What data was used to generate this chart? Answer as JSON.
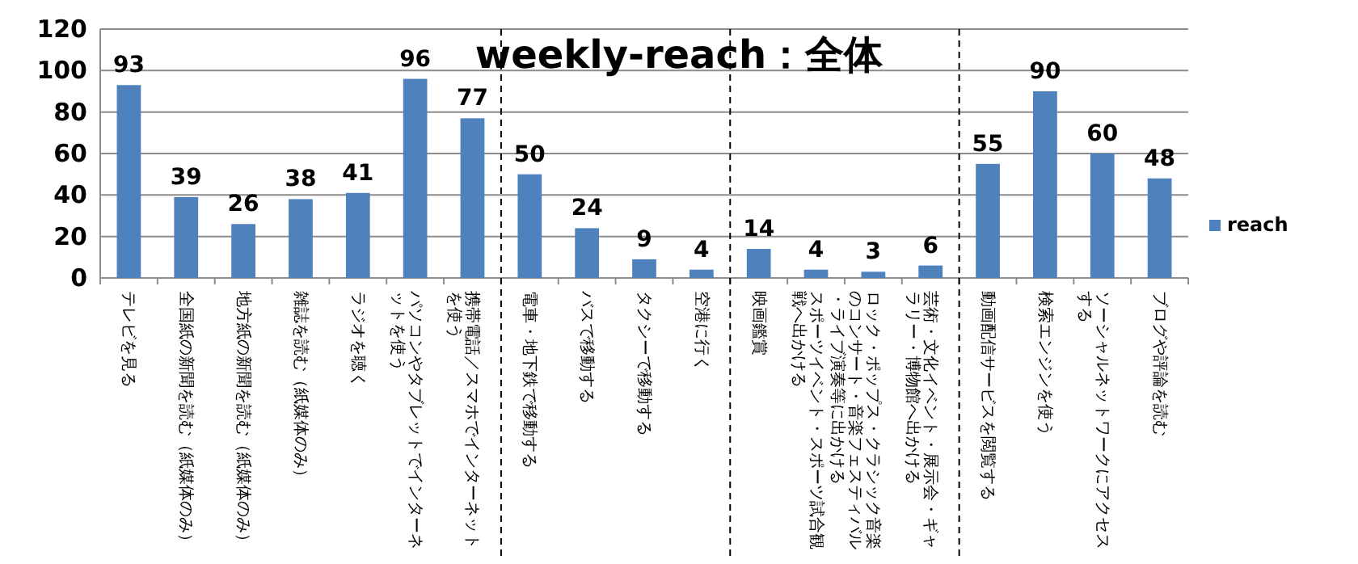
{
  "chart_data": {
    "type": "bar",
    "title": "weekly-reach：全体",
    "categories": [
      "テレビを見る",
      "全国紙の新聞を読む（紙媒体のみ）",
      "地方紙の新聞を読む（紙媒体のみ）",
      "雑誌を読む（紙媒体のみ）",
      "ラジオを聴く",
      "パソコンやタブレットでインターネットを使う",
      "携帯電話／スマホでインターネットを使う",
      "電車・地下鉄で移動する",
      "バスで移動する",
      "タクシーで移動する",
      "空港に行く",
      "映画鑑賞",
      "スポーツイベント・スポーツ試合観戦へ出かける",
      "ロック・ポップス・クラシック音楽のコンサート・音楽フェスティバル・ライブ演奏等に出かける",
      "芸術・文化イベント・展示会・ギャラリー・博物館へ出かける",
      "動画配信サービスを閲覧する",
      "検索エンジンを使う",
      "ソーシャルネットワークにアクセスする",
      "ブログや評論を読む"
    ],
    "series": [
      {
        "name": "reach",
        "color": "#4f81bd",
        "values": [
          93,
          39,
          26,
          38,
          41,
          96,
          77,
          50,
          24,
          9,
          4,
          14,
          4,
          3,
          6,
          55,
          90,
          60,
          48
        ]
      }
    ],
    "ylim": [
      0,
      120
    ],
    "yticks": [
      0,
      20,
      40,
      60,
      80,
      100,
      120
    ],
    "grid": "y",
    "legend": "right",
    "data_labels": true
  }
}
